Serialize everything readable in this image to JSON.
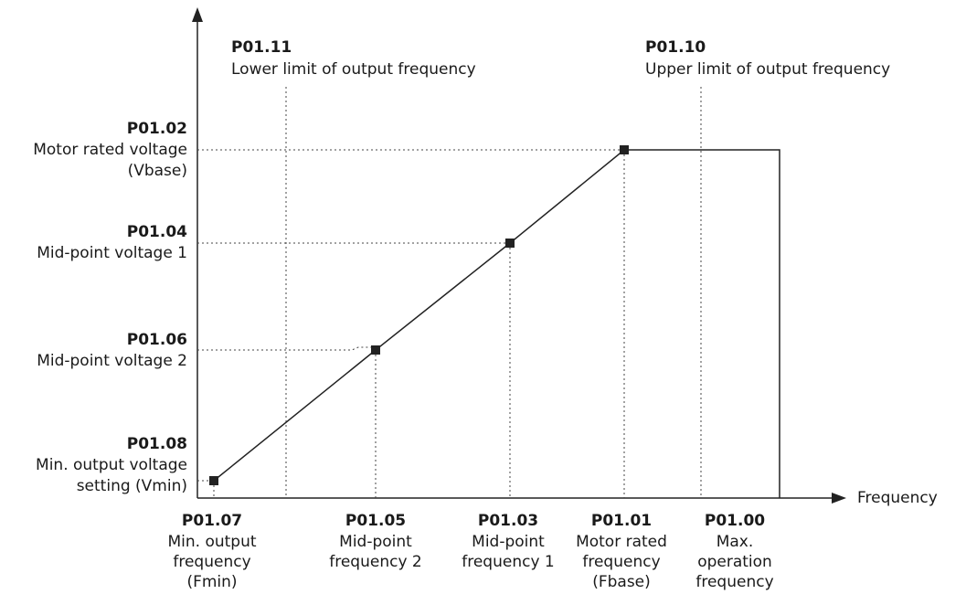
{
  "axes": {
    "x_label": "Frequency"
  },
  "top_labels": [
    {
      "code": "P01.11",
      "text": "Lower limit of output frequency"
    },
    {
      "code": "P01.10",
      "text": "Upper limit of output frequency"
    }
  ],
  "voltage_labels": [
    {
      "code": "P01.02",
      "lines": [
        "Motor rated voltage",
        "(Vbase)"
      ]
    },
    {
      "code": "P01.04",
      "lines": [
        "Mid-point voltage 1"
      ]
    },
    {
      "code": "P01.06",
      "lines": [
        "Mid-point voltage 2"
      ]
    },
    {
      "code": "P01.08",
      "lines": [
        "Min. output voltage",
        "setting (Vmin)"
      ]
    }
  ],
  "frequency_labels": [
    {
      "code": "P01.07",
      "lines": [
        "Min. output",
        "frequency",
        "(Fmin)"
      ]
    },
    {
      "code": "P01.05",
      "lines": [
        "Mid-point",
        "frequency 2"
      ]
    },
    {
      "code": "P01.03",
      "lines": [
        "Mid-point",
        "frequency 1"
      ]
    },
    {
      "code": "P01.01",
      "lines": [
        "Motor rated",
        "frequency",
        "(Fbase)"
      ]
    },
    {
      "code": "P01.00",
      "lines": [
        "Max.",
        "operation",
        "frequency"
      ]
    }
  ]
}
